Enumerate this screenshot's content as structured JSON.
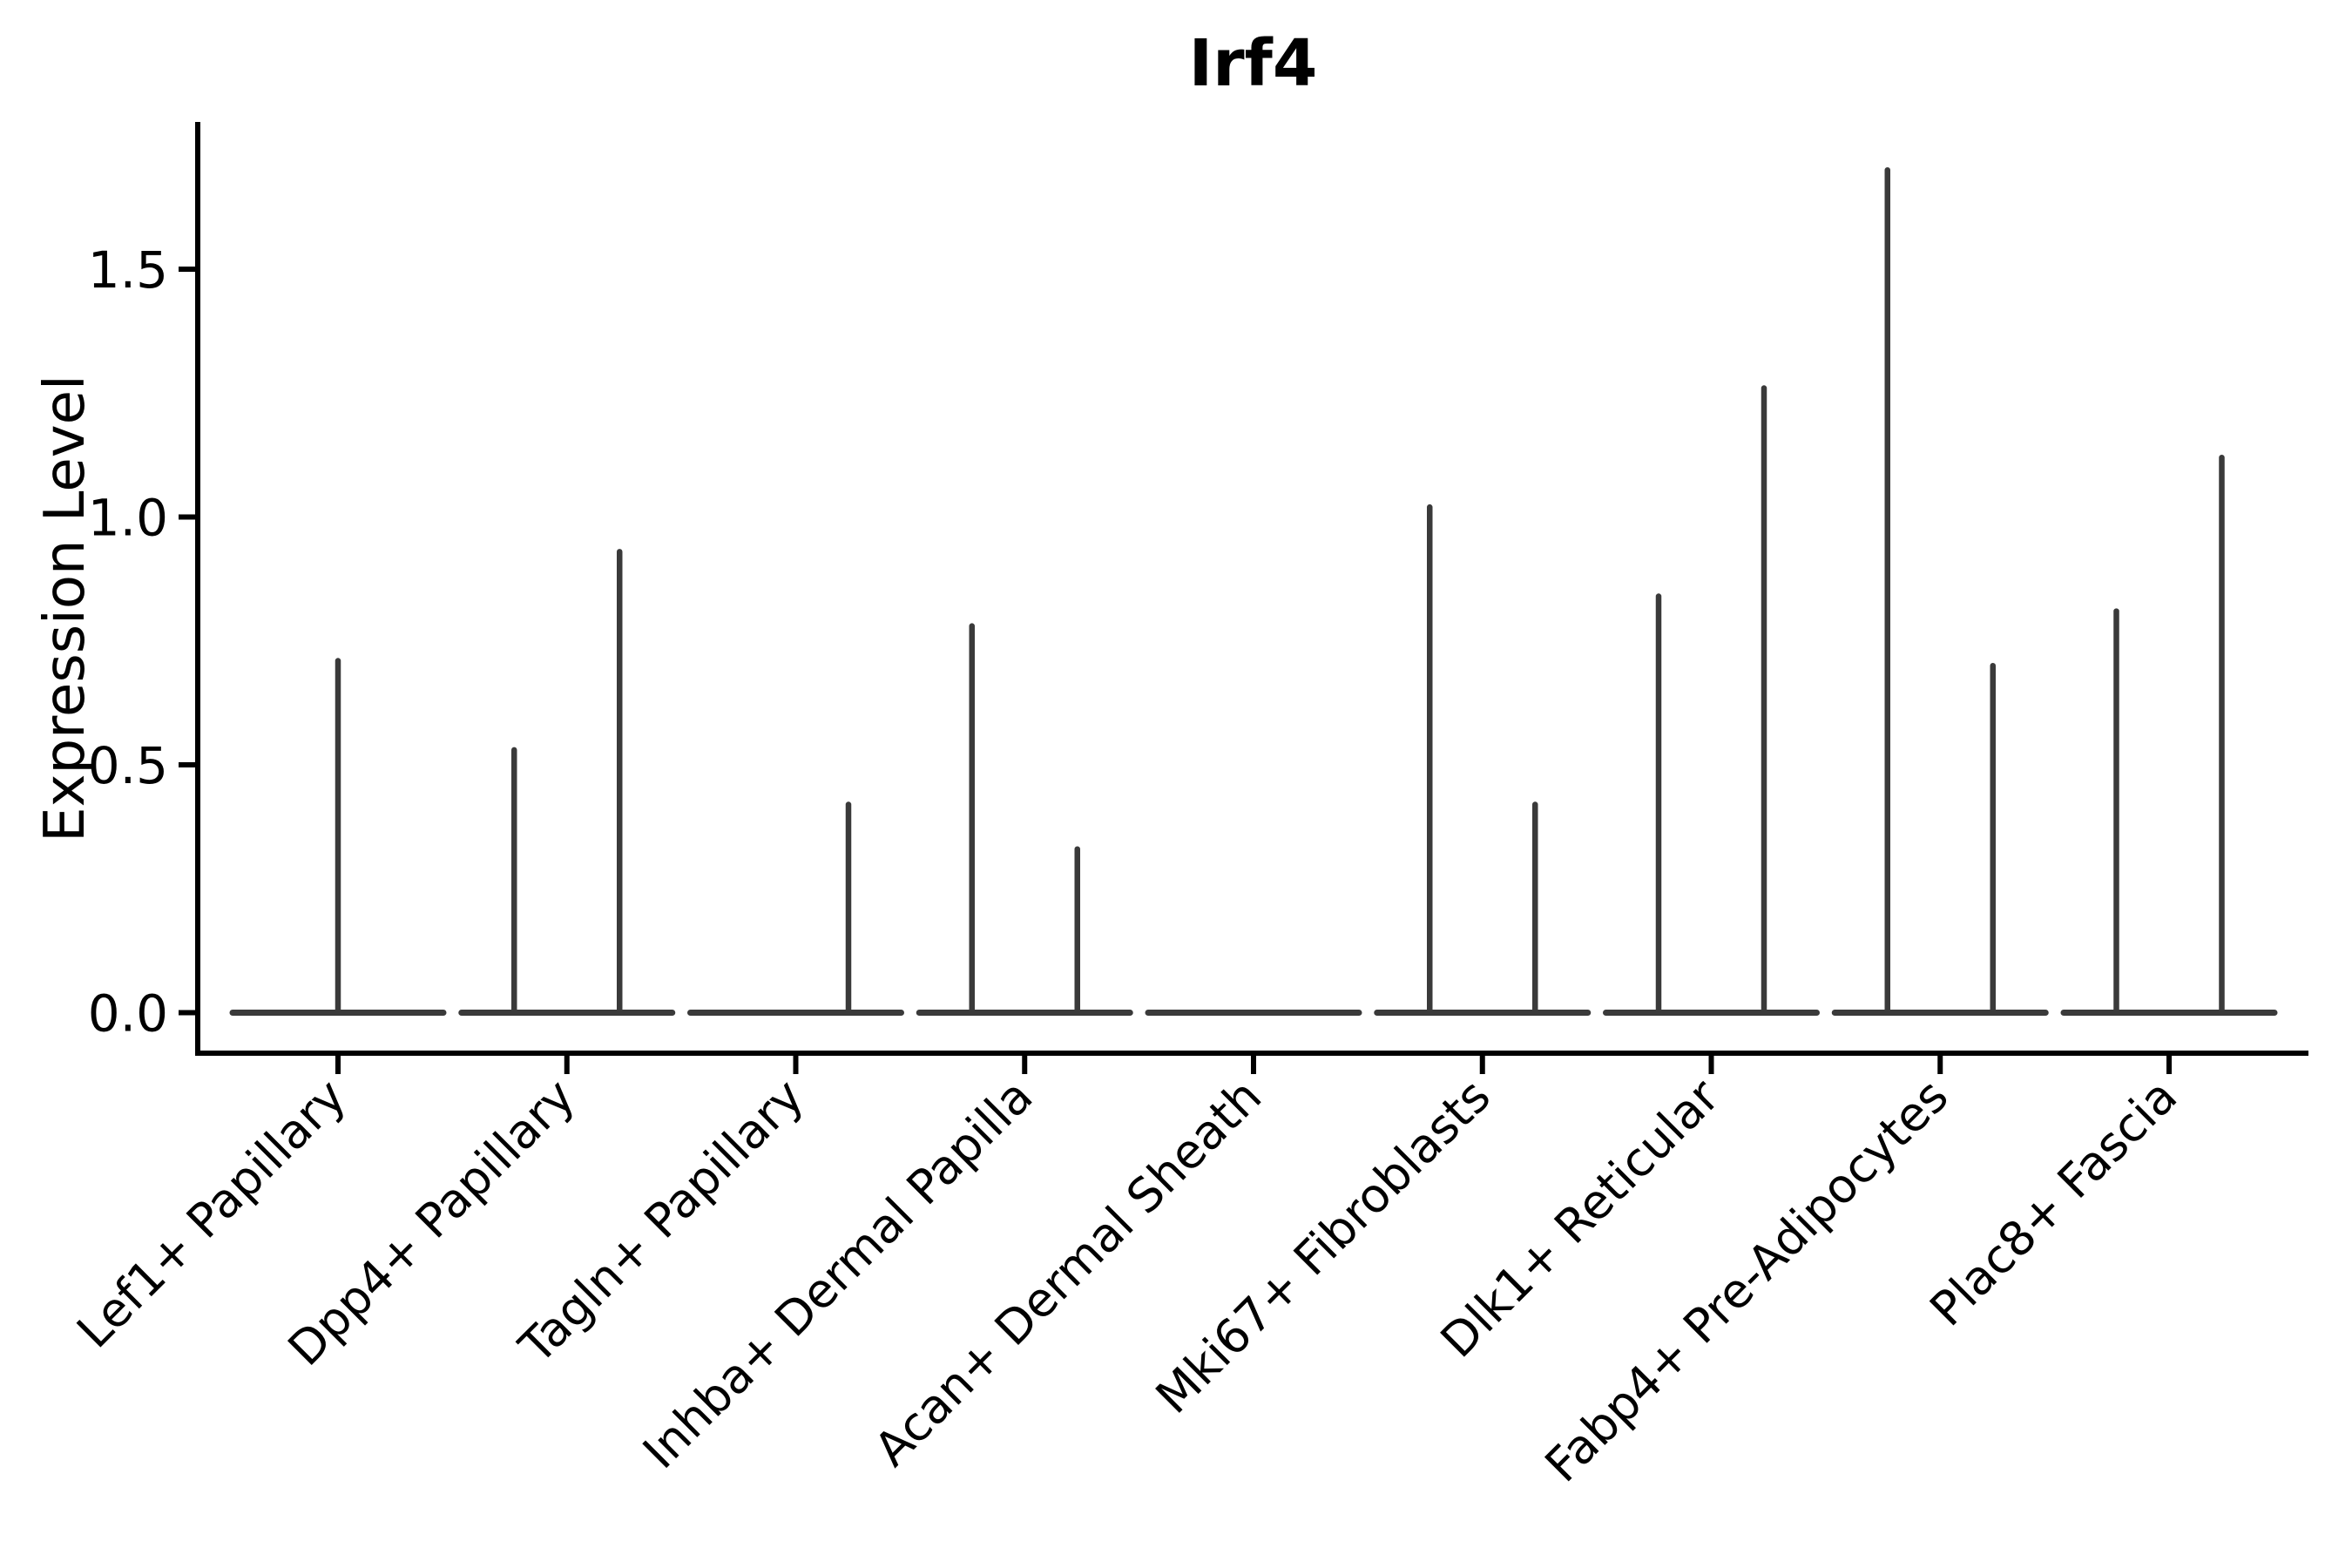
{
  "title": "Irf4",
  "colors": {
    "background": "#ffffff",
    "axis": "#000000",
    "text": "#000000",
    "violin_stroke": "#3a3a3a"
  },
  "chart_data": {
    "type": "violin",
    "title": "Irf4",
    "xlabel": "",
    "ylabel": "Expression Level",
    "ylim": [
      -0.08,
      1.8
    ],
    "yticks": [
      "0.0",
      "0.5",
      "1.0",
      "1.5"
    ],
    "ytick_values": [
      0.0,
      0.5,
      1.0,
      1.5
    ],
    "grid": false,
    "legend_position": "none",
    "x_tick_label_rotation_deg": 45,
    "categories": [
      "Lef1+ Papillary",
      "Dpp4+ Papillary",
      "Tagln+ Papillary",
      "Inhba+ Dermal Papilla",
      "Acan+ Dermal Sheath",
      "Mki67+ Fibroblasts",
      "Dlk1+ Reticular",
      "Fabp4+ Pre-Adipocytes",
      "Plac8+ Fascia"
    ],
    "description": "Violin plot of Irf4 expression per fibroblast subtype; bulk of cells at 0 expression forms a flat baseline in every category, with thin vertical spikes reaching the maximum expressed values.",
    "violins": [
      {
        "label": "Lef1+ Papillary",
        "baseline_value": 0,
        "spikes": [
          {
            "side": "center",
            "max": 0.71
          }
        ]
      },
      {
        "label": "Dpp4+ Papillary",
        "baseline_value": 0,
        "spikes": [
          {
            "side": "left",
            "max": 0.53
          },
          {
            "side": "right",
            "max": 0.93
          }
        ]
      },
      {
        "label": "Tagln+ Papillary",
        "baseline_value": 0,
        "spikes": [
          {
            "side": "right",
            "max": 0.42
          }
        ]
      },
      {
        "label": "Inhba+ Dermal Papilla",
        "baseline_value": 0,
        "spikes": [
          {
            "side": "left",
            "max": 0.78
          },
          {
            "side": "right",
            "max": 0.33
          }
        ]
      },
      {
        "label": "Acan+ Dermal Sheath",
        "baseline_value": 0,
        "spikes": []
      },
      {
        "label": "Mki67+ Fibroblasts",
        "baseline_value": 0,
        "spikes": [
          {
            "side": "left",
            "max": 1.02
          },
          {
            "side": "right",
            "max": 0.42
          }
        ]
      },
      {
        "label": "Dlk1+ Reticular",
        "baseline_value": 0,
        "spikes": [
          {
            "side": "left",
            "max": 0.84
          },
          {
            "side": "right",
            "max": 1.26
          }
        ]
      },
      {
        "label": "Fabp4+ Pre-Adipocytes",
        "baseline_value": 0,
        "spikes": [
          {
            "side": "left",
            "max": 1.7
          },
          {
            "side": "right",
            "max": 0.7
          }
        ]
      },
      {
        "label": "Plac8+ Fascia",
        "baseline_value": 0,
        "spikes": [
          {
            "side": "left",
            "max": 0.81
          },
          {
            "side": "right",
            "max": 1.12
          }
        ]
      }
    ]
  }
}
